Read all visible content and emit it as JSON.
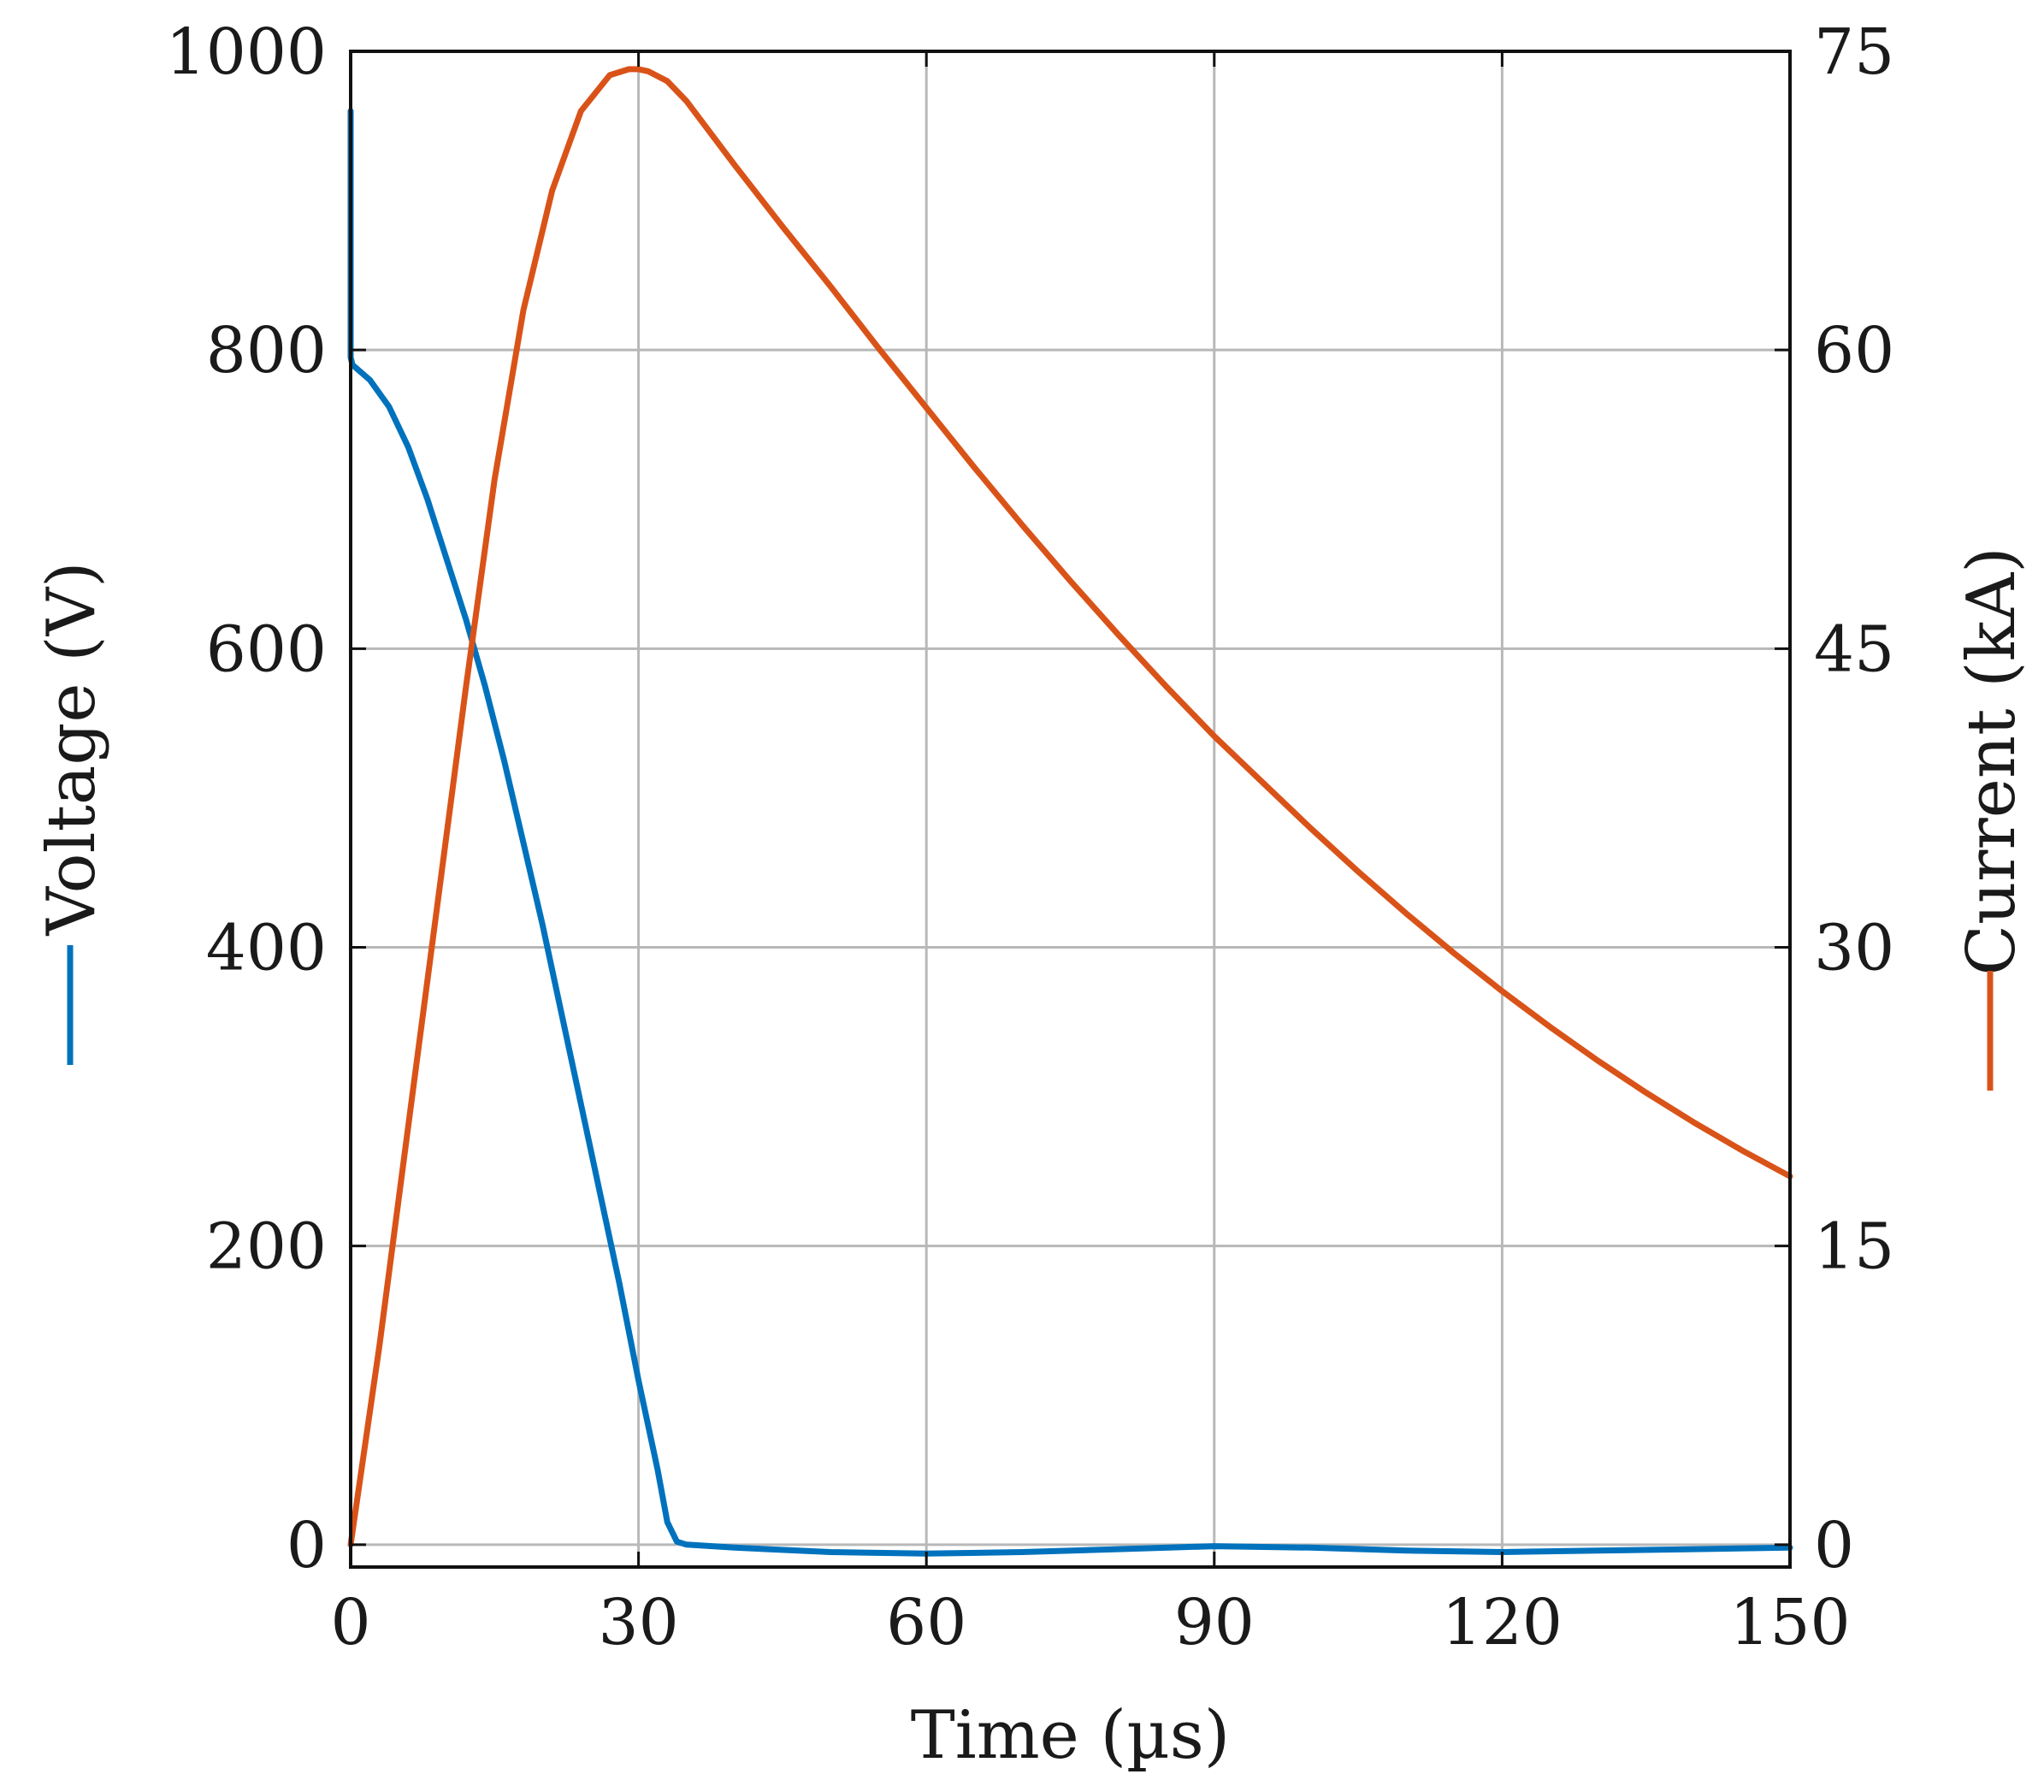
{
  "chart_data": {
    "type": "line",
    "xlabel": "Time (µs)",
    "ylabel_left": "Voltage (V)",
    "ylabel_right": "Current (kA)",
    "xlim": [
      0,
      150
    ],
    "ylim_left": [
      -15,
      1000
    ],
    "ylim_right": [
      -1.125,
      75
    ],
    "x_ticks": [
      "0",
      "30",
      "60",
      "90",
      "120",
      "150"
    ],
    "y_left_ticks": [
      "0",
      "200",
      "400",
      "600",
      "800",
      "1000"
    ],
    "y_right_ticks": [
      "0",
      "15",
      "30",
      "45",
      "60",
      "75"
    ],
    "grid": true,
    "series": [
      {
        "name": "Voltage",
        "axis": "left",
        "color": "#0072BD",
        "x": [
          0,
          0,
          0.2,
          2,
          4,
          6,
          8,
          10,
          12,
          14,
          16,
          18,
          20,
          22,
          24,
          26,
          28,
          30,
          32,
          33,
          34,
          35,
          40,
          50,
          60,
          70,
          80,
          90,
          100,
          110,
          120,
          130,
          140,
          150
        ],
        "y": [
          960,
          795,
          790,
          780,
          762,
          735,
          700,
          660,
          620,
          575,
          525,
          470,
          415,
          355,
          295,
          235,
          175,
          110,
          50,
          15,
          2,
          0,
          -2,
          -5,
          -6,
          -5,
          -3,
          -1,
          -2,
          -4,
          -5,
          -4,
          -3,
          -2
        ]
      },
      {
        "name": "Current",
        "axis": "right",
        "color": "#D95319",
        "x": [
          0,
          3,
          6,
          9,
          12,
          15,
          18,
          21,
          24,
          27,
          29,
          30,
          31,
          33,
          35,
          40,
          45,
          50,
          55,
          60,
          65,
          70,
          75,
          80,
          85,
          90,
          95,
          100,
          105,
          110,
          115,
          120,
          125,
          130,
          135,
          140,
          145,
          150
        ],
        "y": [
          0,
          10,
          21,
          32,
          43,
          53.5,
          62,
          68,
          72,
          73.8,
          74.1,
          74.1,
          74,
          73.5,
          72.5,
          69.3,
          66.2,
          63.2,
          60.1,
          57.1,
          54.1,
          51.2,
          48.4,
          45.7,
          43.1,
          40.6,
          38.3,
          36,
          33.8,
          31.7,
          29.7,
          27.8,
          26,
          24.3,
          22.7,
          21.2,
          19.8,
          18.5
        ]
      }
    ]
  }
}
